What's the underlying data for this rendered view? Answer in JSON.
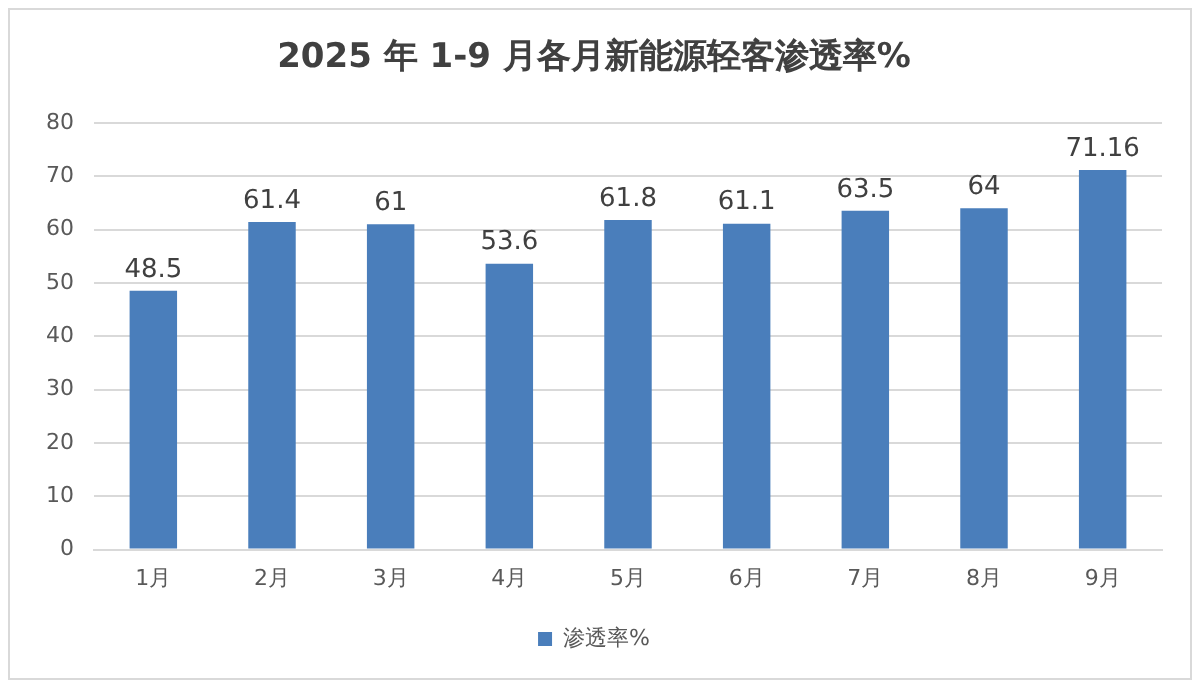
{
  "chart_data": {
    "type": "bar",
    "title": "2025 年 1-9 月各月新能源轻客渗透率%",
    "categories": [
      "1月",
      "2月",
      "3月",
      "4月",
      "5月",
      "6月",
      "7月",
      "8月",
      "9月"
    ],
    "series": [
      {
        "name": "渗透率%",
        "color": "#4a7ebb",
        "values": [
          48.5,
          61.4,
          61,
          53.6,
          61.8,
          61.1,
          63.5,
          64,
          71.16
        ]
      }
    ],
    "ylim": [
      0,
      80
    ],
    "yticks": [
      0,
      10,
      20,
      30,
      40,
      50,
      60,
      70,
      80
    ],
    "grid": "y",
    "legend": "bottom",
    "data_labels": true
  }
}
